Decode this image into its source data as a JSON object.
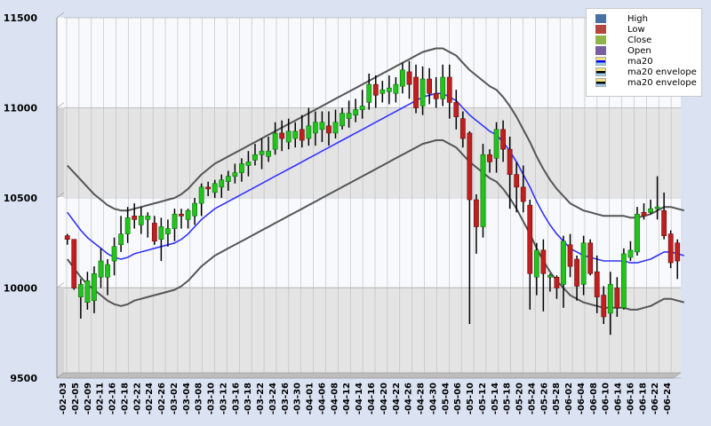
{
  "chart_data": {
    "type": "candlestick",
    "y_ticks": [
      9500,
      10000,
      10500,
      11000,
      11500
    ],
    "ylim": [
      9500,
      11500
    ],
    "x_tick_labels": [
      "-02-03",
      "-02-05",
      "-02-09",
      "-02-11",
      "-02-16",
      "-02-18",
      "-02-22",
      "-02-24",
      "-02-26",
      "-03-02",
      "-03-04",
      "-03-08",
      "-03-10",
      "-03-12",
      "-03-16",
      "-03-18",
      "-03-22",
      "-03-24",
      "-03-26",
      "-03-30",
      "-04-01",
      "-04-06",
      "-04-08",
      "-04-12",
      "-04-14",
      "-04-16",
      "-04-20",
      "-04-22",
      "-04-26",
      "-04-28",
      "-04-30",
      "-05-04",
      "-05-06",
      "-05-10",
      "-05-12",
      "-05-14",
      "-05-18",
      "-05-20",
      "-05-24",
      "-05-26",
      "-05-28",
      "-06-02",
      "-06-04",
      "-06-08",
      "-06-10",
      "-06-14",
      "-06-16",
      "-06-18",
      "-06-22",
      "-06-24"
    ],
    "legend": [
      {
        "label": "High",
        "color": "#4a6fa5"
      },
      {
        "label": "Low",
        "color": "#b5453f"
      },
      {
        "label": "Close",
        "color": "#8fb34d"
      },
      {
        "label": "Open",
        "color": "#7a5fa0"
      },
      {
        "label": "ma20",
        "color": "#0000ff"
      },
      {
        "label": "ma20 envelope",
        "color": "#000000"
      },
      {
        "label": "ma20 envelope",
        "color": "#000000"
      }
    ],
    "candles": [
      [
        10290,
        10270,
        10300,
        10240
      ],
      [
        10270,
        10000,
        10270,
        9990
      ],
      [
        9950,
        10020,
        10050,
        9830
      ],
      [
        9920,
        10040,
        10090,
        9880
      ],
      [
        9930,
        10080,
        10120,
        9860
      ],
      [
        10060,
        10150,
        10220,
        10000
      ],
      [
        10060,
        10130,
        10160,
        9960
      ],
      [
        10150,
        10230,
        10280,
        10070
      ],
      [
        10240,
        10300,
        10400,
        10200
      ],
      [
        10300,
        10390,
        10450,
        10250
      ],
      [
        10400,
        10380,
        10470,
        10330
      ],
      [
        10350,
        10400,
        10450,
        10300
      ],
      [
        10380,
        10400,
        10420,
        10280
      ],
      [
        10360,
        10260,
        10400,
        10240
      ],
      [
        10270,
        10340,
        10390,
        10150
      ],
      [
        10300,
        10330,
        10380,
        10230
      ],
      [
        10330,
        10410,
        10440,
        10260
      ],
      [
        10410,
        10400,
        10440,
        10330
      ],
      [
        10380,
        10430,
        10440,
        10330
      ],
      [
        10400,
        10470,
        10500,
        10350
      ],
      [
        10470,
        10560,
        10580,
        10400
      ],
      [
        10560,
        10550,
        10590,
        10510
      ],
      [
        10530,
        10580,
        10600,
        10500
      ],
      [
        10560,
        10600,
        10630,
        10500
      ],
      [
        10590,
        10620,
        10650,
        10540
      ],
      [
        10620,
        10640,
        10690,
        10580
      ],
      [
        10640,
        10690,
        10720,
        10590
      ],
      [
        10680,
        10700,
        10760,
        10620
      ],
      [
        10710,
        10740,
        10800,
        10680
      ],
      [
        10740,
        10760,
        10830,
        10660
      ],
      [
        10730,
        10760,
        10840,
        10700
      ],
      [
        10770,
        10860,
        10920,
        10740
      ],
      [
        10860,
        10830,
        10930,
        10760
      ],
      [
        10810,
        10870,
        10940,
        10770
      ],
      [
        10830,
        10870,
        10920,
        10780
      ],
      [
        10880,
        10820,
        10960,
        10780
      ],
      [
        10830,
        10900,
        11000,
        10790
      ],
      [
        10860,
        10920,
        10980,
        10790
      ],
      [
        10880,
        10920,
        10980,
        10810
      ],
      [
        10900,
        10860,
        10980,
        10790
      ],
      [
        10860,
        10920,
        10990,
        10830
      ],
      [
        10900,
        10970,
        11000,
        10880
      ],
      [
        10940,
        10970,
        11040,
        10890
      ],
      [
        10960,
        10990,
        11050,
        10920
      ],
      [
        10990,
        11010,
        11100,
        10940
      ],
      [
        11030,
        11130,
        11190,
        10990
      ],
      [
        11130,
        11070,
        11180,
        11000
      ],
      [
        11080,
        11100,
        11150,
        11030
      ],
      [
        11090,
        11110,
        11180,
        11020
      ],
      [
        11080,
        11130,
        11170,
        11030
      ],
      [
        11120,
        11210,
        11250,
        11080
      ],
      [
        11200,
        11130,
        11260,
        11050
      ],
      [
        11170,
        11000,
        11240,
        10970
      ],
      [
        11010,
        11160,
        11230,
        10960
      ],
      [
        11160,
        11080,
        11220,
        11020
      ],
      [
        11080,
        11050,
        11170,
        11000
      ],
      [
        11050,
        11170,
        11240,
        11010
      ],
      [
        11170,
        11030,
        11240,
        10940
      ],
      [
        11030,
        10950,
        11100,
        10880
      ],
      [
        10940,
        10830,
        10980,
        10780
      ],
      [
        10860,
        10490,
        10870,
        9800
      ],
      [
        10490,
        10340,
        10520,
        10190
      ],
      [
        10340,
        10740,
        10800,
        10280
      ],
      [
        10740,
        10700,
        10770,
        10640
      ],
      [
        10720,
        10880,
        10920,
        10640
      ],
      [
        10880,
        10770,
        10930,
        10700
      ],
      [
        10770,
        10630,
        10840,
        10440
      ],
      [
        10630,
        10560,
        10700,
        10420
      ],
      [
        10560,
        10480,
        10680,
        10420
      ],
      [
        10460,
        10080,
        10490,
        9880
      ],
      [
        10060,
        10210,
        10250,
        9960
      ],
      [
        10210,
        10080,
        10270,
        9870
      ],
      [
        10060,
        10070,
        10080,
        9980
      ],
      [
        10060,
        10000,
        10070,
        9940
      ],
      [
        10020,
        10260,
        10290,
        9890
      ],
      [
        10240,
        10120,
        10300,
        10060
      ],
      [
        10160,
        10010,
        10180,
        9930
      ],
      [
        10020,
        10250,
        10290,
        9960
      ],
      [
        10250,
        10080,
        10270,
        10070
      ],
      [
        10090,
        9950,
        10180,
        9860
      ],
      [
        9960,
        9840,
        10010,
        9800
      ],
      [
        9860,
        10020,
        10090,
        9740
      ],
      [
        10000,
        9890,
        10060,
        9840
      ],
      [
        9890,
        10190,
        10220,
        9880
      ],
      [
        10170,
        10210,
        10260,
        10150
      ],
      [
        10200,
        10410,
        10450,
        10180
      ],
      [
        10420,
        10400,
        10470,
        10380
      ],
      [
        10420,
        10440,
        10490,
        10410
      ],
      [
        10450,
        10450,
        10620,
        10380
      ],
      [
        10430,
        10290,
        10530,
        10270
      ],
      [
        10300,
        10140,
        10320,
        10110
      ],
      [
        10250,
        10150,
        10270,
        10050
      ]
    ],
    "ma20": [
      10420,
      10370,
      10320,
      10280,
      10250,
      10220,
      10190,
      10170,
      10160,
      10170,
      10190,
      10200,
      10210,
      10220,
      10230,
      10240,
      10250,
      10270,
      10300,
      10340,
      10380,
      10410,
      10440,
      10460,
      10480,
      10500,
      10520,
      10540,
      10560,
      10580,
      10600,
      10620,
      10640,
      10660,
      10680,
      10700,
      10720,
      10740,
      10760,
      10780,
      10800,
      10820,
      10840,
      10860,
      10880,
      10900,
      10920,
      10940,
      10960,
      10980,
      11000,
      11020,
      11040,
      11060,
      11070,
      11080,
      11080,
      11060,
      11040,
      11000,
      10960,
      10930,
      10900,
      10870,
      10850,
      10810,
      10760,
      10700,
      10630,
      10560,
      10480,
      10410,
      10350,
      10300,
      10260,
      10220,
      10200,
      10180,
      10170,
      10160,
      10150,
      10150,
      10150,
      10150,
      10140,
      10140,
      10150,
      10160,
      10180,
      10200,
      10200,
      10190,
      10180
    ],
    "env_upper": [
      10680,
      10640,
      10600,
      10560,
      10520,
      10490,
      10460,
      10440,
      10430,
      10430,
      10440,
      10450,
      10460,
      10470,
      10480,
      10490,
      10500,
      10520,
      10550,
      10590,
      10630,
      10660,
      10690,
      10710,
      10730,
      10750,
      10770,
      10790,
      10810,
      10830,
      10850,
      10870,
      10890,
      10910,
      10930,
      10950,
      10970,
      10990,
      11010,
      11030,
      11050,
      11070,
      11090,
      11110,
      11130,
      11150,
      11170,
      11190,
      11210,
      11230,
      11250,
      11270,
      11290,
      11310,
      11320,
      11330,
      11330,
      11310,
      11290,
      11250,
      11210,
      11180,
      11150,
      11120,
      11100,
      11060,
      11010,
      10950,
      10880,
      10810,
      10730,
      10660,
      10600,
      10550,
      10510,
      10470,
      10450,
      10430,
      10420,
      10410,
      10400,
      10400,
      10400,
      10400,
      10390,
      10390,
      10400,
      10410,
      10430,
      10450,
      10450,
      10440,
      10430
    ],
    "env_lower": [
      10160,
      10110,
      10060,
      10020,
      9990,
      9960,
      9930,
      9910,
      9900,
      9910,
      9930,
      9940,
      9950,
      9960,
      9970,
      9980,
      9990,
      10010,
      10040,
      10080,
      10120,
      10150,
      10180,
      10200,
      10220,
      10240,
      10260,
      10280,
      10300,
      10320,
      10340,
      10360,
      10380,
      10400,
      10420,
      10440,
      10460,
      10480,
      10500,
      10520,
      10540,
      10560,
      10580,
      10600,
      10620,
      10640,
      10660,
      10680,
      10700,
      10720,
      10740,
      10760,
      10780,
      10800,
      10810,
      10820,
      10820,
      10800,
      10780,
      10740,
      10700,
      10670,
      10640,
      10610,
      10590,
      10550,
      10500,
      10440,
      10370,
      10300,
      10220,
      10150,
      10090,
      10040,
      10000,
      9960,
      9940,
      9920,
      9910,
      9900,
      9890,
      9890,
      9890,
      9890,
      9880,
      9880,
      9890,
      9900,
      9920,
      9940,
      9940,
      9930,
      9920
    ]
  }
}
